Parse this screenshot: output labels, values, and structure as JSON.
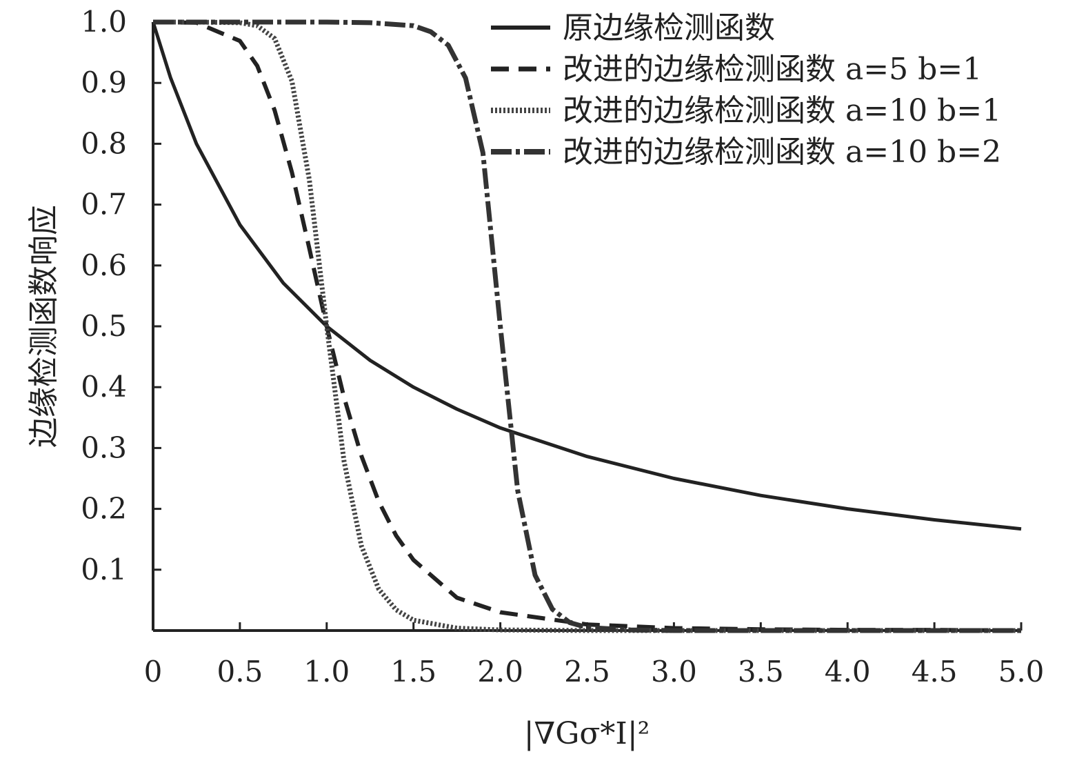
{
  "chart_data": {
    "type": "line",
    "xlabel": "|∇Gσ*I|²",
    "ylabel": "边缘检测函数响应",
    "xlim": [
      0,
      5
    ],
    "ylim": [
      0,
      1
    ],
    "x_ticks": [
      "0",
      "0.5",
      "1.0",
      "1.5",
      "2.0",
      "2.5",
      "3.0",
      "3.5",
      "4.0",
      "4.5",
      "5.0"
    ],
    "y_ticks": [
      "0.1",
      "0.2",
      "0.3",
      "0.4",
      "0.5",
      "0.6",
      "0.7",
      "0.8",
      "0.9",
      "1.0"
    ],
    "grid": false,
    "legend_position": "top-right",
    "series": [
      {
        "name": "原边缘检测函数",
        "style": "solid",
        "x": [
          0,
          0.1,
          0.25,
          0.5,
          0.75,
          1.0,
          1.25,
          1.5,
          1.75,
          2.0,
          2.5,
          3.0,
          3.5,
          4.0,
          4.5,
          5.0
        ],
        "values": [
          1.0,
          0.909,
          0.8,
          0.667,
          0.571,
          0.5,
          0.444,
          0.4,
          0.364,
          0.333,
          0.286,
          0.25,
          0.222,
          0.2,
          0.182,
          0.167
        ]
      },
      {
        "name": "改进的边缘检测函数 a=5 b=1",
        "style": "dashed",
        "x": [
          0,
          0.25,
          0.5,
          0.6,
          0.7,
          0.8,
          0.9,
          1.0,
          1.1,
          1.2,
          1.3,
          1.4,
          1.5,
          1.75,
          2.0,
          2.5,
          3.0,
          3.5,
          4.0,
          4.5,
          5.0
        ],
        "values": [
          1.0,
          0.999,
          0.969,
          0.928,
          0.855,
          0.753,
          0.628,
          0.5,
          0.383,
          0.287,
          0.212,
          0.156,
          0.116,
          0.054,
          0.03,
          0.01,
          0.004,
          0.002,
          0.001,
          0.001,
          0.0
        ]
      },
      {
        "name": "改进的边缘检测函数 a=10 b=1",
        "style": "dotted",
        "x": [
          0,
          0.25,
          0.5,
          0.6,
          0.7,
          0.8,
          0.9,
          1.0,
          1.1,
          1.2,
          1.3,
          1.4,
          1.5,
          1.75,
          2.0,
          2.5,
          3.0,
          3.5,
          4.0,
          4.5,
          5.0
        ],
        "values": [
          1.0,
          1.0,
          0.999,
          0.994,
          0.973,
          0.903,
          0.741,
          0.5,
          0.278,
          0.139,
          0.068,
          0.034,
          0.017,
          0.004,
          0.001,
          0.0,
          0.0,
          0.0,
          0.0,
          0.0,
          0.0
        ]
      },
      {
        "name": "改进的边缘检测函数 a=10 b=2",
        "style": "dashdot",
        "x": [
          0,
          0.5,
          1.0,
          1.25,
          1.5,
          1.6,
          1.7,
          1.8,
          1.9,
          2.0,
          2.1,
          2.2,
          2.3,
          2.4,
          2.5,
          2.75,
          3.0,
          3.5,
          4.0,
          4.5,
          5.0
        ],
        "values": [
          1.0,
          1.0,
          1.0,
          0.999,
          0.994,
          0.984,
          0.962,
          0.908,
          0.785,
          0.5,
          0.23,
          0.091,
          0.035,
          0.013,
          0.005,
          0.001,
          0.0,
          0.0,
          0.0,
          0.0,
          0.0
        ]
      }
    ]
  }
}
